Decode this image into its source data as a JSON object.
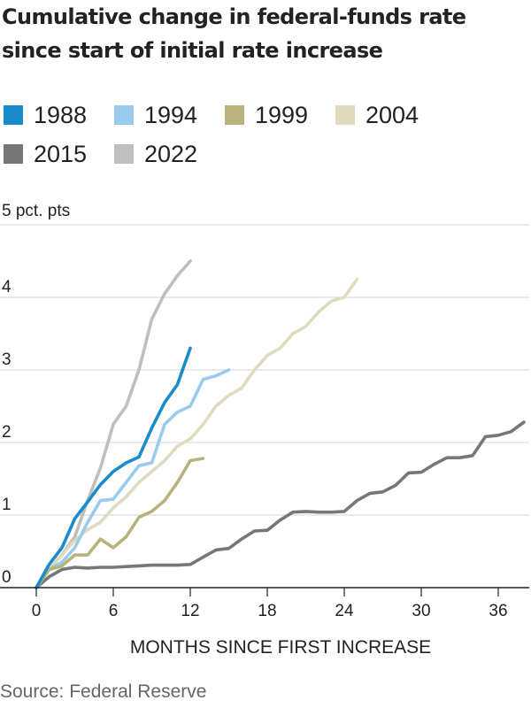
{
  "chart_data": {
    "type": "line",
    "title": "Cumulative change in federal-funds rate since start of initial rate increase",
    "unit_label": "5 pct. pts",
    "xlabel": "MONTHS SINCE FIRST INCREASE",
    "ylabel": "",
    "xlim": [
      -2,
      38.5
    ],
    "ylim": [
      0,
      5
    ],
    "x_ticks": [
      0,
      6,
      12,
      18,
      24,
      30,
      36
    ],
    "y_ticks": [
      {
        "value": 0,
        "label": "0"
      },
      {
        "value": 1,
        "label": "1"
      },
      {
        "value": 2,
        "label": "2"
      },
      {
        "value": 3,
        "label": "3"
      },
      {
        "value": 4,
        "label": "4"
      },
      {
        "value": 5,
        "label": ""
      }
    ],
    "grid": "horizontal",
    "legend_position": "top",
    "source": "Source: Federal Reserve",
    "series": [
      {
        "name": "2022",
        "color": "#bfbfbf",
        "x": [
          0,
          1,
          2,
          3,
          4,
          5,
          6,
          7,
          8,
          9,
          10,
          11,
          12
        ],
        "y": [
          0,
          0.25,
          0.45,
          0.7,
          1.2,
          1.65,
          2.25,
          2.5,
          3.0,
          3.7,
          4.05,
          4.3,
          4.5
        ]
      },
      {
        "name": "2004",
        "color": "#e0dbbd",
        "x": [
          0,
          1,
          2,
          3,
          4,
          5,
          6,
          7,
          8,
          9,
          10,
          11,
          12,
          13,
          14,
          15,
          16,
          17,
          18,
          19,
          20,
          21,
          22,
          23,
          24,
          25
        ],
        "y": [
          0,
          0.25,
          0.45,
          0.65,
          0.8,
          0.9,
          1.1,
          1.25,
          1.45,
          1.6,
          1.75,
          1.95,
          2.05,
          2.25,
          2.5,
          2.65,
          2.75,
          3.0,
          3.2,
          3.3,
          3.5,
          3.6,
          3.8,
          3.95,
          4.0,
          4.25
        ]
      },
      {
        "name": "2015",
        "color": "#777777",
        "x": [
          0,
          1,
          2,
          3,
          4,
          5,
          6,
          7,
          8,
          9,
          10,
          11,
          12,
          13,
          14,
          15,
          16,
          17,
          18,
          19,
          20,
          21,
          22,
          23,
          24,
          25,
          26,
          27,
          28,
          29,
          30,
          31,
          32,
          33,
          34,
          35,
          36,
          37,
          38
        ],
        "y": [
          0,
          0.15,
          0.25,
          0.28,
          0.27,
          0.28,
          0.28,
          0.29,
          0.3,
          0.31,
          0.31,
          0.31,
          0.32,
          0.42,
          0.52,
          0.54,
          0.67,
          0.78,
          0.79,
          0.93,
          1.04,
          1.05,
          1.04,
          1.04,
          1.05,
          1.2,
          1.3,
          1.32,
          1.41,
          1.58,
          1.59,
          1.7,
          1.79,
          1.79,
          1.82,
          2.08,
          2.1,
          2.15,
          2.28
        ]
      },
      {
        "name": "1994",
        "color": "#99ccec",
        "x": [
          0,
          1,
          2,
          3,
          4,
          5,
          6,
          7,
          8,
          9,
          10,
          11,
          12,
          13,
          14,
          15
        ],
        "y": [
          0,
          0.25,
          0.35,
          0.55,
          0.9,
          1.2,
          1.22,
          1.45,
          1.68,
          1.72,
          2.25,
          2.42,
          2.5,
          2.87,
          2.92,
          3.0
        ]
      },
      {
        "name": "1999",
        "color": "#b8b27c",
        "x": [
          0,
          1,
          2,
          3,
          4,
          5,
          6,
          7,
          8,
          9,
          10,
          11,
          12,
          13
        ],
        "y": [
          0,
          0.25,
          0.3,
          0.45,
          0.45,
          0.67,
          0.55,
          0.7,
          0.97,
          1.05,
          1.2,
          1.45,
          1.75,
          1.78
        ]
      },
      {
        "name": "1988",
        "color": "#1a8ccc",
        "x": [
          0,
          1,
          2,
          3,
          4,
          5,
          6,
          7,
          8,
          9,
          10,
          11,
          12
        ],
        "y": [
          0,
          0.32,
          0.55,
          0.95,
          1.18,
          1.42,
          1.6,
          1.72,
          1.8,
          2.2,
          2.55,
          2.8,
          3.3
        ]
      }
    ],
    "legend": [
      {
        "name": "1988",
        "color": "#1a8ccc"
      },
      {
        "name": "1994",
        "color": "#99ccec"
      },
      {
        "name": "1999",
        "color": "#b8b27c"
      },
      {
        "name": "2004",
        "color": "#e0dbbd"
      },
      {
        "name": "2015",
        "color": "#777777"
      },
      {
        "name": "2022",
        "color": "#bfbfbf"
      }
    ]
  }
}
